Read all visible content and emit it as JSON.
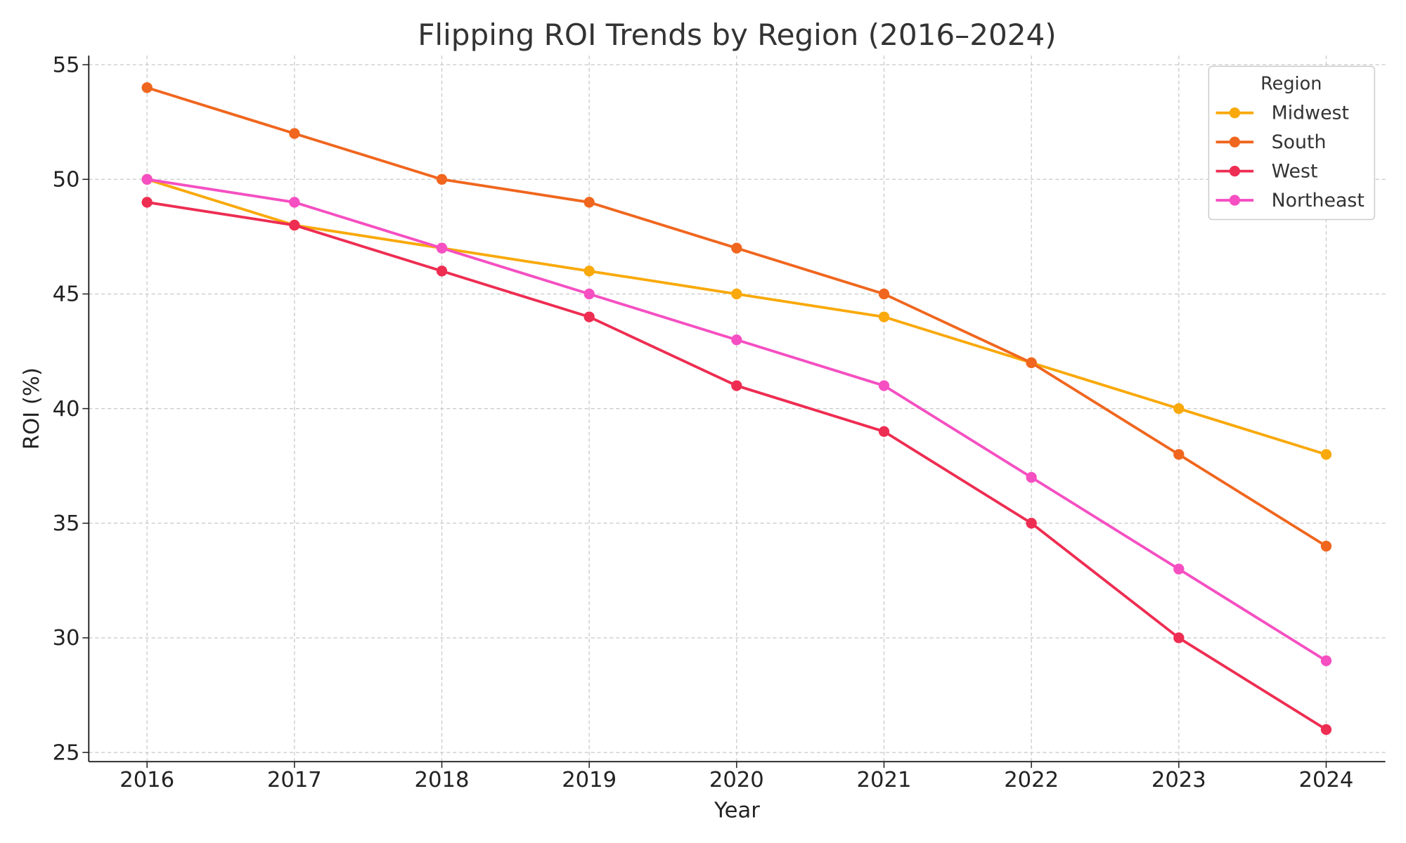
{
  "chart_data": {
    "type": "line",
    "title": "Flipping ROI Trends by Region (2016–2024)",
    "xlabel": "Year",
    "ylabel": "ROI (%)",
    "x": [
      "2016",
      "2017",
      "2018",
      "2019",
      "2020",
      "2021",
      "2022",
      "2023",
      "2024"
    ],
    "ylim": [
      24.6,
      55.4
    ],
    "yticks": [
      "25",
      "30",
      "35",
      "40",
      "45",
      "50",
      "55"
    ],
    "grid": true,
    "legend": {
      "title": "Region",
      "placement": "top-right"
    },
    "series": [
      {
        "name": "Midwest",
        "color": "#f9a90b",
        "values": [
          50,
          48,
          47,
          46,
          45,
          44,
          42,
          40,
          38
        ]
      },
      {
        "name": "South",
        "color": "#f0661e",
        "values": [
          54,
          52,
          50,
          49,
          47,
          45,
          42,
          38,
          34
        ]
      },
      {
        "name": "West",
        "color": "#ee2d52",
        "values": [
          49,
          48,
          46,
          44,
          41,
          39,
          35,
          30,
          26
        ]
      },
      {
        "name": "Northeast",
        "color": "#f54fc2",
        "values": [
          50,
          49,
          47,
          45,
          43,
          41,
          37,
          33,
          29
        ]
      }
    ]
  }
}
